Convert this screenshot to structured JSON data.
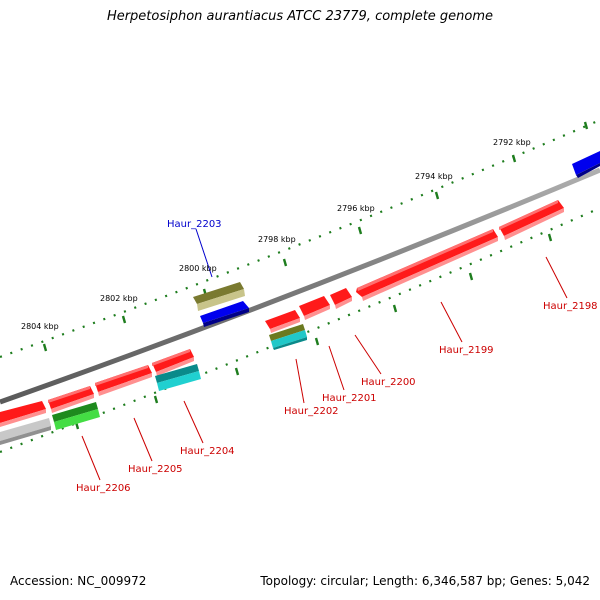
{
  "title": "Herpetosiphon aurantiacus ATCC 23779, complete genome",
  "accession": "Accession: NC_009972",
  "summary": "Topology: circular; Length: 6,346,587 bp; Genes: 5,042",
  "colors": {
    "backbone": "#8c8c8c",
    "tick": "#1e7d1e",
    "forward_gene": "#ff0000",
    "reverse_gene_label": "#cc0000",
    "highlight_label": "#0000cc",
    "blue_feature": "#0000ee",
    "olive_feature": "#b5b06e",
    "cyan_feature": "#20c8c8",
    "green_feature": "#33cc33",
    "gray_feature": "#c8c8c8"
  },
  "scale_labels": [
    "2792 kbp",
    "2794 kbp",
    "2796 kbp",
    "2798 kbp",
    "2800 kbp",
    "2802 kbp",
    "2804 kbp"
  ],
  "gene_labels": [
    {
      "text": "Haur_2203",
      "color": "#0000cc"
    },
    {
      "text": "Haur_2198",
      "color": "#cc0000"
    },
    {
      "text": "Haur_2199",
      "color": "#cc0000"
    },
    {
      "text": "Haur_2200",
      "color": "#cc0000"
    },
    {
      "text": "Haur_2201",
      "color": "#cc0000"
    },
    {
      "text": "Haur_2202",
      "color": "#cc0000"
    },
    {
      "text": "Haur_2204",
      "color": "#cc0000"
    },
    {
      "text": "Haur_2205",
      "color": "#cc0000"
    },
    {
      "text": "Haur_2206",
      "color": "#cc0000"
    }
  ]
}
